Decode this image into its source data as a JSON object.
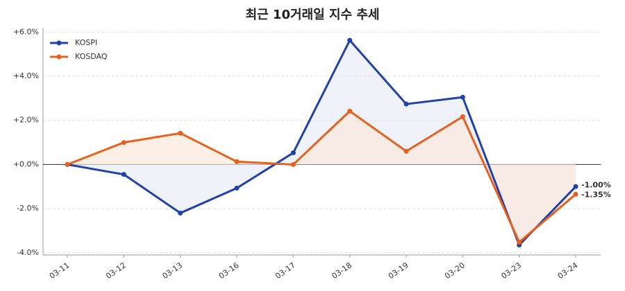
{
  "chart_data": {
    "type": "line",
    "title": "최근 10거래일 지수 추세",
    "categories": [
      "03-11",
      "03-12",
      "03-13",
      "03-16",
      "03-17",
      "03-18",
      "03-19",
      "03-20",
      "03-23",
      "03-24"
    ],
    "series": [
      {
        "name": "KOSPI",
        "color": "#2140a8",
        "fill": "#e9edf8",
        "values": [
          0,
          -0.45,
          -2.2,
          -1.07,
          0.53,
          5.63,
          2.74,
          3.05,
          -3.65,
          -1.0
        ],
        "value_labels": [
          null,
          null,
          null,
          null,
          null,
          null,
          null,
          null,
          null,
          "-1.00%"
        ]
      },
      {
        "name": "KOSDAQ",
        "color": "#e8601c",
        "fill": "#fbe8dc",
        "values": [
          0,
          1.0,
          1.42,
          0.13,
          0.0,
          2.42,
          0.6,
          2.17,
          -3.52,
          -1.35
        ],
        "value_labels": [
          null,
          null,
          null,
          null,
          null,
          null,
          null,
          null,
          null,
          "-1.35%"
        ]
      }
    ],
    "ylim": [
      -4.1,
      6.2
    ],
    "yticks": [
      {
        "value": -4,
        "label": "-4.0%"
      },
      {
        "value": -2,
        "label": "-2.0%"
      },
      {
        "value": 0,
        "label": "+0.0%"
      },
      {
        "value": 2,
        "label": "+2.0%"
      },
      {
        "value": 4,
        "label": "+4.0%"
      },
      {
        "value": 6,
        "label": "+6.0%"
      }
    ],
    "grid": true,
    "legend": "upper left"
  }
}
